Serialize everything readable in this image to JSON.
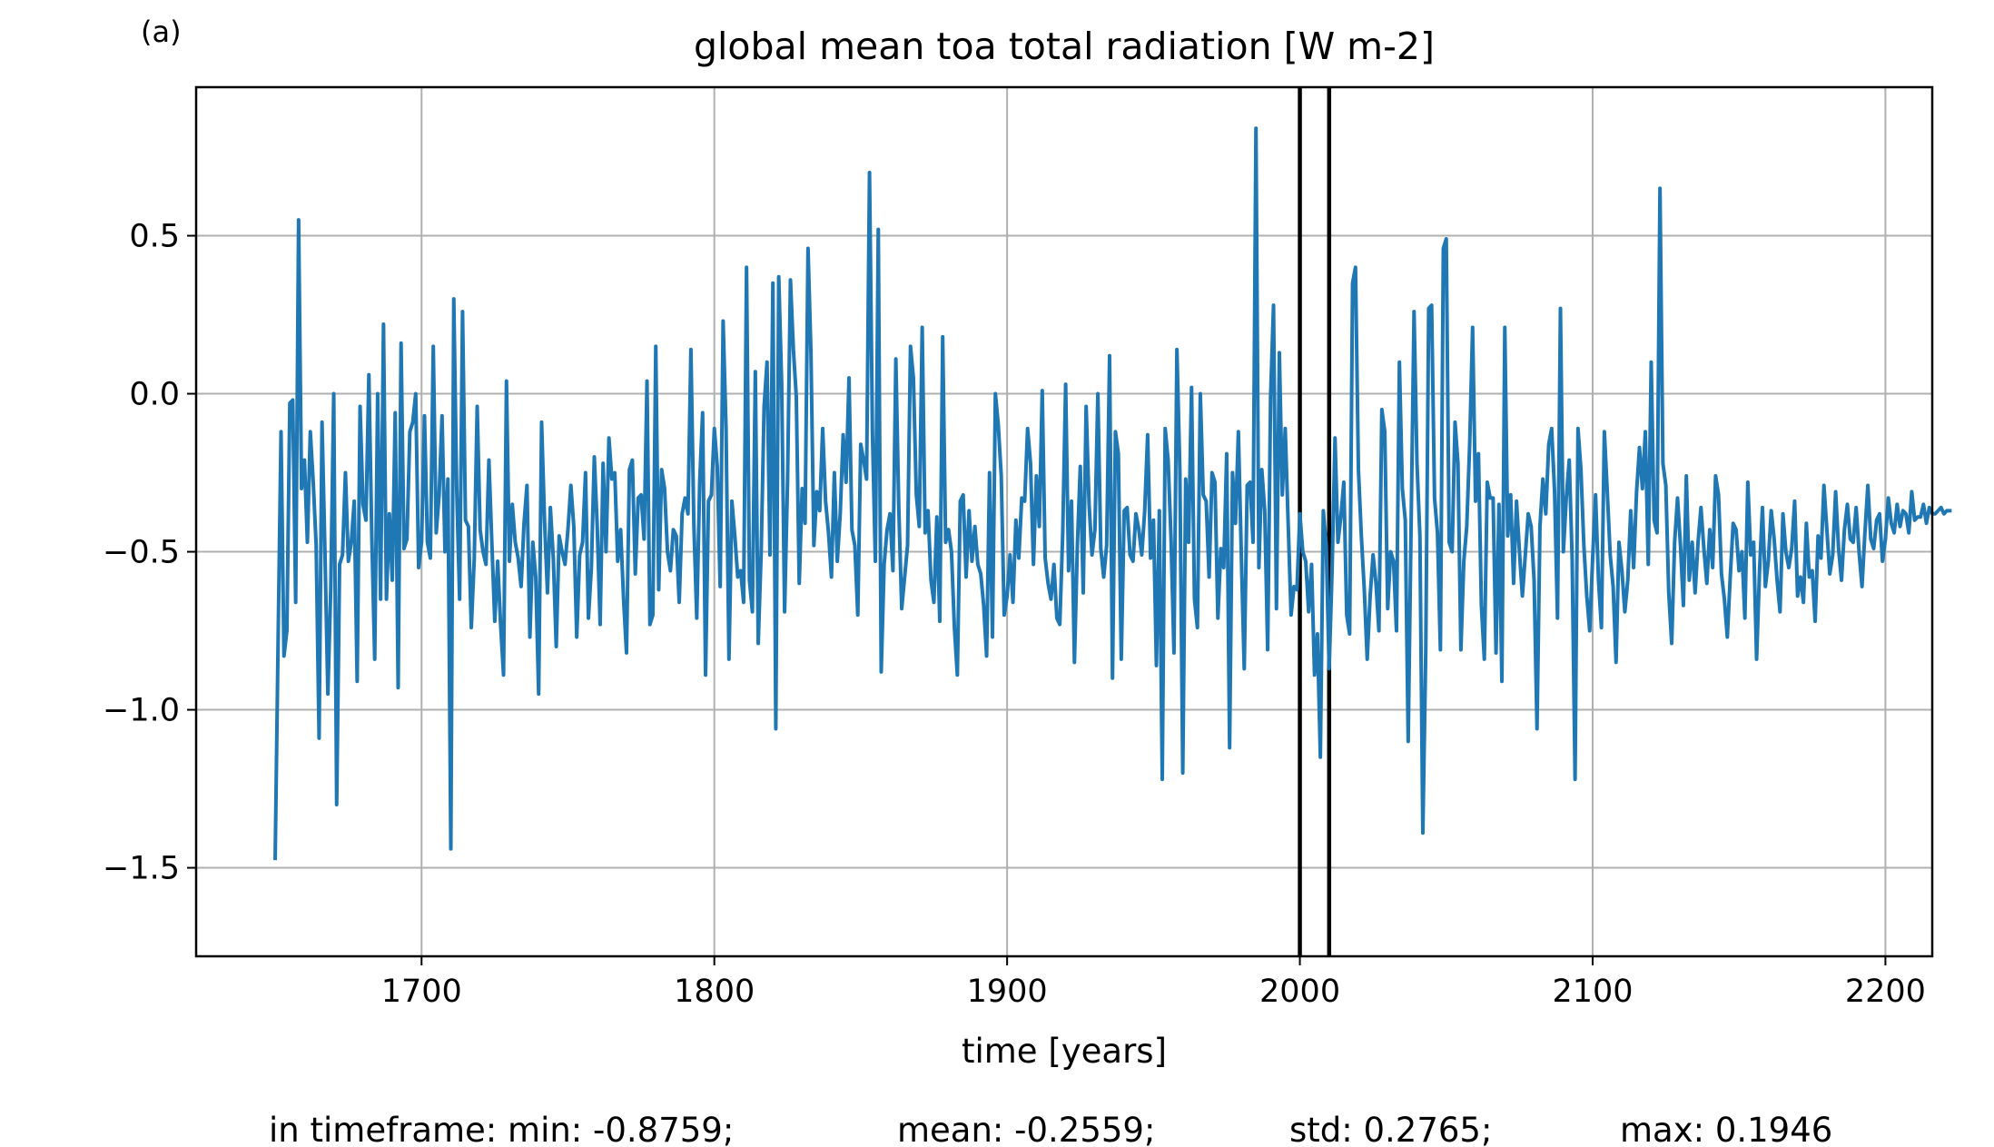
{
  "panel_label": "(a)",
  "footer": {
    "min": "in timeframe: min: -0.8759;",
    "mean": "mean: -0.2559;",
    "std": "std: 0.2765;",
    "max": "max: 0.1946"
  },
  "colors": {
    "series": "#1f77b4",
    "grid": "#b0b0b0",
    "marker_lines": "#000000"
  },
  "chart_data": {
    "type": "line",
    "title": "global mean toa total radiation [W m-2]",
    "xlabel": "time [years]",
    "ylabel": "",
    "xlim": [
      1623,
      2216
    ],
    "ylim": [
      -1.78,
      0.97
    ],
    "xticks": [
      1700,
      1800,
      1900,
      2000,
      2100,
      2200
    ],
    "xtick_labels": [
      "1700",
      "1800",
      "1900",
      "2000",
      "2100",
      "2200"
    ],
    "yticks": [
      0.5,
      0.0,
      -0.5,
      -1.0,
      -1.5
    ],
    "ytick_labels": [
      "0.5",
      "0.0",
      "−0.5",
      "−1.0",
      "−1.5"
    ],
    "grid": true,
    "vertical_lines": [
      2000,
      2010
    ],
    "series": [
      {
        "x_start": 1650,
        "x_step": 1,
        "values": [
          -1.47,
          -0.78,
          -0.12,
          -0.83,
          -0.75,
          -0.03,
          -0.02,
          -0.66,
          0.55,
          -0.3,
          -0.21,
          -0.47,
          -0.12,
          -0.28,
          -0.48,
          -1.09,
          -0.09,
          -0.5,
          -0.95,
          -0.61,
          0.0,
          -1.3,
          -0.54,
          -0.51,
          -0.25,
          -0.53,
          -0.47,
          -0.34,
          -0.91,
          -0.04,
          -0.35,
          -0.4,
          0.06,
          -0.45,
          -0.84,
          0.0,
          -0.65,
          0.22,
          -0.65,
          -0.38,
          -0.59,
          -0.06,
          -0.93,
          0.16,
          -0.49,
          -0.46,
          -0.12,
          -0.09,
          0.0,
          -0.55,
          -0.47,
          -0.07,
          -0.47,
          -0.52,
          0.15,
          -0.44,
          -0.32,
          -0.07,
          -0.5,
          -0.27,
          -1.44,
          0.3,
          -0.3,
          -0.65,
          0.26,
          -0.4,
          -0.42,
          -0.74,
          -0.52,
          -0.04,
          -0.43,
          -0.5,
          -0.54,
          -0.21,
          -0.47,
          -0.72,
          -0.53,
          -0.73,
          -0.89,
          0.04,
          -0.53,
          -0.35,
          -0.47,
          -0.52,
          -0.61,
          -0.41,
          -0.29,
          -0.77,
          -0.47,
          -0.58,
          -0.95,
          -0.09,
          -0.4,
          -0.63,
          -0.36,
          -0.52,
          -0.8,
          -0.45,
          -0.5,
          -0.54,
          -0.43,
          -0.29,
          -0.42,
          -0.77,
          -0.51,
          -0.47,
          -0.25,
          -0.71,
          -0.55,
          -0.2,
          -0.42,
          -0.73,
          -0.22,
          -0.5,
          -0.14,
          -0.27,
          -0.25,
          -0.53,
          -0.43,
          -0.65,
          -0.82,
          -0.24,
          -0.21,
          -0.57,
          -0.33,
          -0.32,
          -0.46,
          0.04,
          -0.73,
          -0.7,
          0.15,
          -0.62,
          -0.24,
          -0.3,
          -0.5,
          -0.56,
          -0.43,
          -0.45,
          -0.66,
          -0.38,
          -0.33,
          -0.38,
          0.14,
          -0.41,
          -0.71,
          -0.28,
          -0.06,
          -0.89,
          -0.34,
          -0.32,
          -0.11,
          -0.23,
          -0.61,
          0.23,
          -0.11,
          -0.84,
          -0.34,
          -0.45,
          -0.58,
          -0.56,
          -0.66,
          0.4,
          -0.59,
          -0.69,
          0.07,
          -0.79,
          -0.5,
          -0.04,
          0.1,
          -0.51,
          0.35,
          -1.06,
          0.37,
          0.03,
          -0.69,
          -0.28,
          0.36,
          0.14,
          -0.01,
          -0.6,
          -0.3,
          -0.41,
          0.46,
          0.13,
          -0.48,
          -0.31,
          -0.37,
          -0.11,
          -0.34,
          -0.44,
          -0.58,
          -0.25,
          -0.53,
          -0.38,
          -0.13,
          -0.28,
          0.05,
          -0.43,
          -0.48,
          -0.7,
          -0.16,
          -0.21,
          -0.27,
          0.7,
          -0.12,
          -0.53,
          0.52,
          -0.88,
          -0.54,
          -0.43,
          -0.38,
          -0.56,
          0.11,
          -0.36,
          -0.68,
          -0.58,
          -0.48,
          0.15,
          0.05,
          -0.32,
          -0.42,
          0.21,
          -0.44,
          -0.37,
          -0.59,
          -0.66,
          -0.39,
          -0.72,
          0.18,
          -0.47,
          -0.43,
          -0.5,
          -0.74,
          -0.89,
          -0.34,
          -0.32,
          -0.58,
          -0.37,
          -0.53,
          -0.42,
          -0.54,
          -0.57,
          -0.67,
          -0.83,
          -0.25,
          -0.77,
          0.0,
          -0.1,
          -0.26,
          -0.7,
          -0.64,
          -0.51,
          -0.66,
          -0.4,
          -0.52,
          -0.33,
          -0.34,
          -0.11,
          -0.22,
          -0.54,
          -0.26,
          -0.42,
          0.01,
          -0.52,
          -0.6,
          -0.65,
          -0.54,
          -0.71,
          -0.73,
          -0.44,
          0.03,
          -0.56,
          -0.34,
          -0.85,
          -0.48,
          -0.23,
          -0.63,
          -0.04,
          -0.35,
          -0.51,
          -0.43,
          0.0,
          -0.49,
          -0.58,
          -0.48,
          0.12,
          -0.9,
          -0.12,
          -0.19,
          -0.84,
          -0.37,
          -0.36,
          -0.51,
          -0.53,
          -0.38,
          -0.43,
          -0.51,
          -0.37,
          -0.13,
          -0.52,
          -0.4,
          -0.86,
          -0.37,
          -1.22,
          -0.11,
          -0.21,
          -0.46,
          -0.82,
          0.14,
          -0.24,
          -1.2,
          -0.27,
          -0.47,
          0.02,
          -0.65,
          -0.74,
          0.0,
          -0.32,
          -0.34,
          -0.58,
          -0.25,
          -0.28,
          -0.71,
          -0.49,
          -0.55,
          -0.19,
          -1.12,
          -0.25,
          -0.41,
          -0.12,
          -0.51,
          -0.87,
          -0.29,
          -0.28,
          -0.47,
          0.84,
          -0.55,
          -0.24,
          -0.37,
          -0.81,
          -0.01,
          0.28,
          -0.68,
          0.13,
          -0.32,
          -0.11,
          -0.41,
          -0.7,
          -0.61,
          -0.62,
          -0.38,
          -0.5,
          -0.53,
          -0.69,
          -0.54,
          -0.89,
          -0.76,
          -1.15,
          -0.37,
          -0.48,
          -0.87,
          -0.56,
          -0.14,
          -0.47,
          -0.39,
          -0.28,
          -0.7,
          -0.76,
          0.35,
          0.4,
          -0.24,
          -0.45,
          -0.62,
          -0.84,
          -0.64,
          -0.51,
          -0.6,
          -0.75,
          -0.05,
          -0.12,
          -0.68,
          -0.5,
          -0.53,
          -0.75,
          0.1,
          -0.3,
          -0.4,
          -1.1,
          -0.41,
          0.26,
          -0.22,
          -0.45,
          -1.39,
          -0.81,
          0.27,
          0.28,
          -0.33,
          -0.44,
          -0.81,
          0.46,
          0.49,
          -0.47,
          -0.5,
          -0.09,
          -0.22,
          -0.81,
          -0.53,
          -0.42,
          -0.16,
          0.21,
          -0.34,
          -0.19,
          -0.67,
          -0.84,
          -0.28,
          -0.33,
          -0.33,
          -0.82,
          -0.35,
          -0.91,
          0.21,
          -0.45,
          -0.32,
          -0.6,
          -0.34,
          -0.5,
          -0.64,
          -0.51,
          -0.38,
          -0.42,
          -0.59,
          -1.06,
          -0.42,
          -0.27,
          -0.38,
          -0.16,
          -0.11,
          -0.31,
          -0.71,
          0.27,
          -0.5,
          -0.33,
          -0.21,
          -0.52,
          -1.22,
          -0.11,
          -0.24,
          -0.48,
          -0.64,
          -0.75,
          -0.52,
          -0.32,
          -0.59,
          -0.74,
          -0.12,
          -0.31,
          -0.51,
          -0.61,
          -0.85,
          -0.47,
          -0.56,
          -0.69,
          -0.59,
          -0.37,
          -0.55,
          -0.31,
          -0.17,
          -0.3,
          -0.12,
          -0.54,
          0.1,
          -0.4,
          -0.44,
          0.65,
          -0.22,
          -0.29,
          -0.63,
          -0.79,
          -0.47,
          -0.33,
          -0.48,
          -0.67,
          -0.26,
          -0.59,
          -0.47,
          -0.63,
          -0.47,
          -0.36,
          -0.49,
          -0.6,
          -0.43,
          -0.55,
          -0.26,
          -0.32,
          -0.57,
          -0.65,
          -0.77,
          -0.58,
          -0.41,
          -0.43,
          -0.56,
          -0.5,
          -0.71,
          -0.28,
          -0.51,
          -0.47,
          -0.84,
          -0.56,
          -0.36,
          -0.61,
          -0.53,
          -0.37,
          -0.46,
          -0.59,
          -0.69,
          -0.38,
          -0.5,
          -0.55,
          -0.49,
          -0.34,
          -0.64,
          -0.58,
          -0.66,
          -0.41,
          -0.58,
          -0.56,
          -0.72,
          -0.45,
          -0.52,
          -0.29,
          -0.43,
          -0.57,
          -0.51,
          -0.31,
          -0.49,
          -0.59,
          -0.43,
          -0.35,
          -0.46,
          -0.47,
          -0.36,
          -0.5,
          -0.61,
          -0.44,
          -0.29,
          -0.46,
          -0.49,
          -0.4,
          -0.38,
          -0.53,
          -0.46,
          -0.33,
          -0.41,
          -0.44,
          -0.35,
          -0.42,
          -0.37,
          -0.38,
          -0.44,
          -0.31,
          -0.4,
          -0.39,
          -0.39,
          -0.35,
          -0.41,
          -0.36,
          -0.38,
          -0.38,
          -0.37,
          -0.36,
          -0.38,
          -0.37,
          -0.37
        ]
      }
    ]
  }
}
